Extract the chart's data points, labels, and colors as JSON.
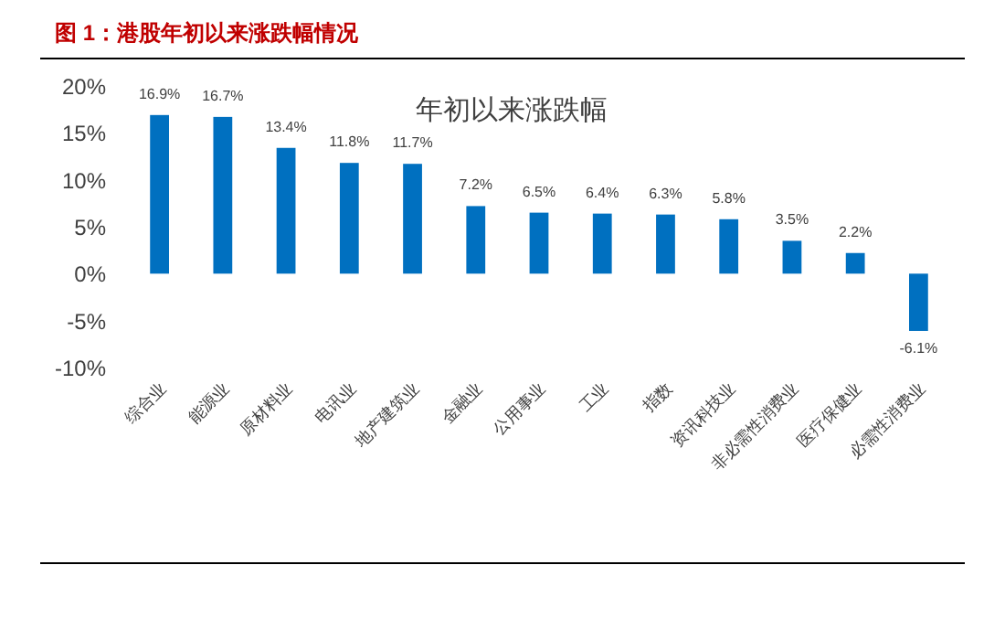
{
  "chart_data": {
    "type": "bar",
    "title": "图 1：港股年初以来涨跌幅情况",
    "subtitle": "年初以来涨跌幅",
    "categories": [
      "综合业",
      "能源业",
      "原材料业",
      "电讯业",
      "地产建筑业",
      "金融业",
      "公用事业",
      "工业",
      "指数",
      "资讯科技业",
      "非必需性消费业",
      "医疗保健业",
      "必需性消费业"
    ],
    "values": [
      16.9,
      16.7,
      13.4,
      11.8,
      11.7,
      7.2,
      6.5,
      6.4,
      6.3,
      5.8,
      3.5,
      2.2,
      -6.1
    ],
    "value_labels": [
      "16.9%",
      "16.7%",
      "13.4%",
      "11.8%",
      "11.7%",
      "7.2%",
      "6.5%",
      "6.4%",
      "6.3%",
      "5.8%",
      "3.5%",
      "2.2%",
      "-6.1%"
    ],
    "color": "#0070c0",
    "ylim": [
      -10,
      20
    ],
    "yticks": [
      {
        "value": -10,
        "label": "-10%"
      },
      {
        "value": -5,
        "label": "-5%"
      },
      {
        "value": 0,
        "label": "0%"
      },
      {
        "value": 5,
        "label": "5%"
      },
      {
        "value": 10,
        "label": "10%"
      },
      {
        "value": 15,
        "label": "15%"
      },
      {
        "value": 20,
        "label": "20%"
      }
    ]
  }
}
